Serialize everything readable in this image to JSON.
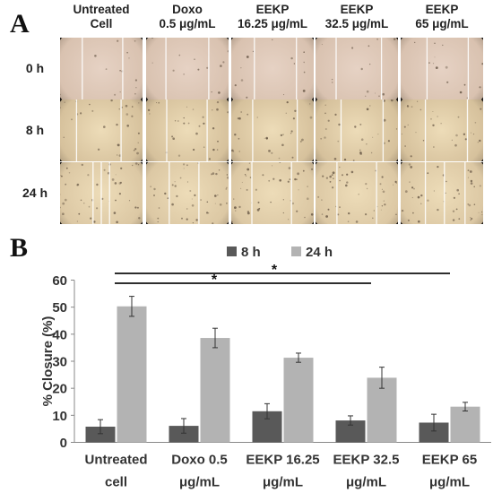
{
  "panel_a": {
    "letter": "A",
    "columns": [
      {
        "line1": "Untreated",
        "line2": "Cell"
      },
      {
        "line1": "Doxo",
        "line2": "0.5 μg/mL"
      },
      {
        "line1": "EEKP",
        "line2": "16.25 μg/mL"
      },
      {
        "line1": "EEKP",
        "line2": "32.5 μg/mL"
      },
      {
        "line1": "EEKP",
        "line2": "65 μg/mL"
      }
    ],
    "rows": [
      "0 h",
      "8 h",
      "24 h"
    ]
  },
  "panel_b": {
    "letter": "B"
  },
  "chart_data": {
    "type": "bar",
    "categories": [
      [
        "Untreated",
        "cell"
      ],
      [
        "Doxo 0.5",
        "μg/mL"
      ],
      [
        "EEKP 16.25",
        "μg/mL"
      ],
      [
        "EEKP 32.5",
        "μg/mL"
      ],
      [
        "EEKP 65",
        "μg/mL"
      ]
    ],
    "series": [
      {
        "name": "8 h",
        "color": "#595959",
        "values": [
          5.8,
          6.1,
          11.5,
          8.1,
          7.3
        ],
        "errors": [
          2.6,
          2.7,
          2.8,
          1.7,
          3.1
        ]
      },
      {
        "name": "24 h",
        "color": "#b3b3b3",
        "values": [
          50.3,
          38.6,
          31.3,
          23.9,
          13.2
        ],
        "errors": [
          3.7,
          3.6,
          1.7,
          3.9,
          1.6
        ]
      }
    ],
    "ylabel": "% Closure (%)",
    "xlabel": "",
    "ylim": [
      0,
      60
    ],
    "yticks": [
      0,
      10,
      20,
      30,
      40,
      50,
      60
    ],
    "grid": false,
    "legend": "top-center",
    "significance": [
      {
        "from": 0,
        "to": 3,
        "label": "*"
      },
      {
        "from": 0,
        "to": 4,
        "label": "*"
      }
    ]
  }
}
